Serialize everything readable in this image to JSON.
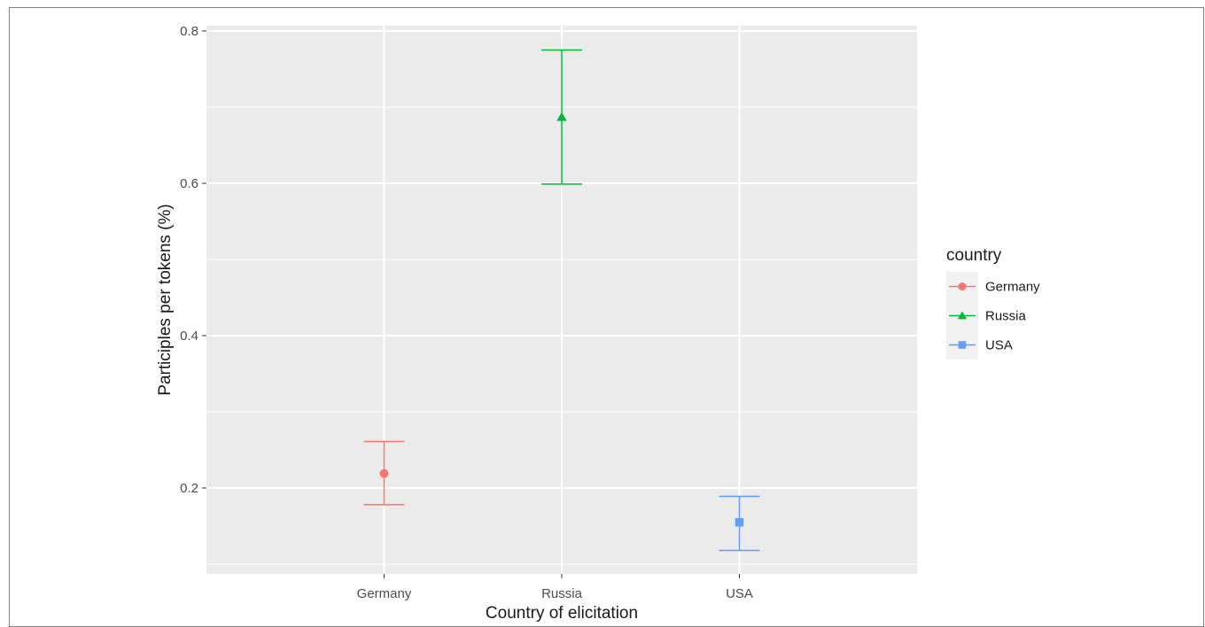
{
  "chart_data": {
    "type": "errorbar",
    "title": "",
    "xlabel": "Country of elicitation",
    "ylabel": "Participles per tokens (%)",
    "categories": [
      "Germany",
      "Russia",
      "USA"
    ],
    "ylim": [
      0.1,
      0.8
    ],
    "yticks": [
      0.2,
      0.4,
      0.6,
      0.8
    ],
    "grid": true,
    "legend": {
      "title": "country",
      "position": "right"
    },
    "series": [
      {
        "name": "Germany",
        "x": "Germany",
        "mean": 0.219,
        "lower": 0.178,
        "upper": 0.261,
        "color": "#F8766D",
        "shape": "circle"
      },
      {
        "name": "Russia",
        "x": "Russia",
        "mean": 0.687,
        "lower": 0.599,
        "upper": 0.775,
        "color": "#00BA38",
        "shape": "triangle"
      },
      {
        "name": "USA",
        "x": "USA",
        "mean": 0.155,
        "lower": 0.118,
        "upper": 0.189,
        "color": "#619CFF",
        "shape": "square"
      }
    ]
  }
}
